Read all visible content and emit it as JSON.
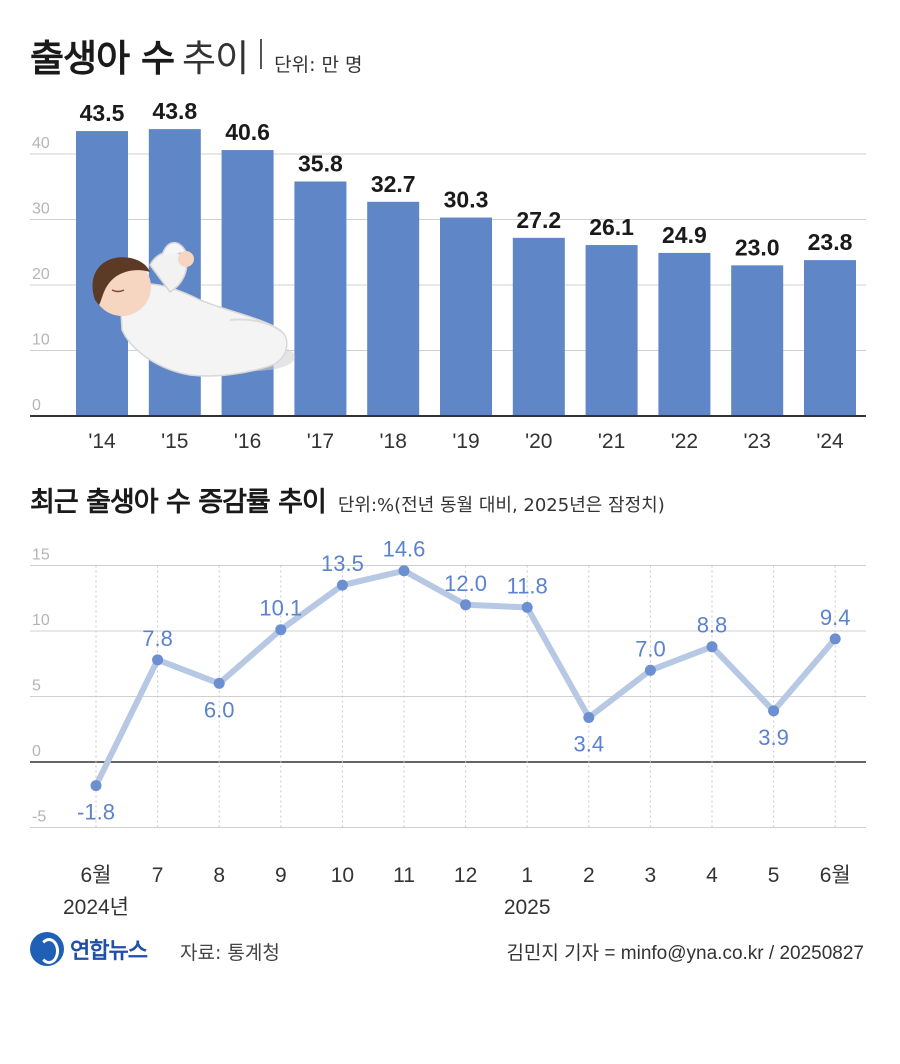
{
  "header": {
    "title_bold": "출생아 수",
    "title_light": "추이",
    "unit": "단위: 만 명"
  },
  "section2": {
    "title": "최근 출생아 수 증감률 추이",
    "unit": "단위:%(전년 동월 대비, 2025년은 잠정치)"
  },
  "footer": {
    "logo": "연합뉴스",
    "source": "자료: 통계청",
    "credit": "김민지 기자 = minfo@yna.co.kr / 20250827"
  },
  "colors": {
    "bar": "#5f86c7",
    "line": "#b7c8e4",
    "point": "#6b8fd0",
    "line_label": "#5b82cc",
    "grid": "#d0d0d0"
  },
  "chart_data": [
    {
      "type": "bar",
      "title": "출생아 수 추이",
      "ylabel": "단위: 만 명",
      "categories": [
        "'14",
        "'15",
        "'16",
        "'17",
        "'18",
        "'19",
        "'20",
        "'21",
        "'22",
        "'23",
        "'24"
      ],
      "values": [
        43.5,
        43.8,
        40.6,
        35.8,
        32.7,
        30.3,
        27.2,
        26.1,
        24.9,
        23.0,
        23.8
      ],
      "value_labels": [
        "43.5",
        "43.8",
        "40.6",
        "35.8",
        "32.7",
        "30.3",
        "27.2",
        "26.1",
        "24.9",
        "23.0",
        "23.8"
      ],
      "yticks": [
        "0",
        "10",
        "20",
        "30",
        "40"
      ],
      "ytick_values": [
        0,
        10,
        20,
        30,
        40
      ],
      "ylim": [
        0,
        42
      ],
      "grid": true
    },
    {
      "type": "line",
      "title": "최근 출생아 수 증감률 추이",
      "ylabel": "단위:%(전년 동월 대비, 2025년은 잠정치)",
      "categories": [
        "6월",
        "7",
        "8",
        "9",
        "10",
        "11",
        "12",
        "1",
        "2",
        "3",
        "4",
        "5",
        "6월"
      ],
      "year_labels": [
        {
          "index": 0,
          "text": "2024년"
        },
        {
          "index": 7,
          "text": "2025"
        }
      ],
      "values": [
        -1.8,
        7.8,
        6.0,
        10.1,
        13.5,
        14.6,
        12.0,
        11.8,
        3.4,
        7.0,
        8.8,
        3.9,
        9.4
      ],
      "value_labels": [
        "-1.8",
        "7.8",
        "6.0",
        "10.1",
        "13.5",
        "14.6",
        "12.0",
        "11.8",
        "3.4",
        "7.0",
        "8.8",
        "3.9",
        "9.4"
      ],
      "label_positions": [
        "below",
        "above",
        "below",
        "above",
        "above",
        "above",
        "above",
        "above",
        "below",
        "above",
        "above",
        "below",
        "above"
      ],
      "yticks": [
        "-5",
        "0",
        "5",
        "10",
        "15"
      ],
      "ytick_values": [
        -5,
        0,
        5,
        10,
        15
      ],
      "ylim": [
        -5,
        15
      ],
      "grid": true
    }
  ]
}
